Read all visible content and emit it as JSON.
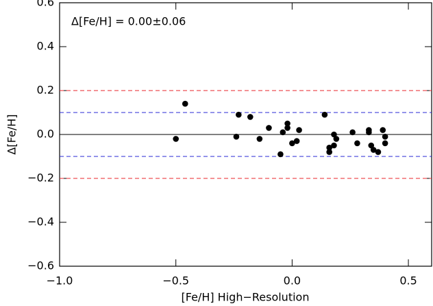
{
  "chart_data": {
    "type": "scatter",
    "annotation": "Δ[Fe/H]  =  0.00±0.06",
    "x_label": "[Fe/H] High−Resolution",
    "y_label": "Δ[Fe/H]",
    "x": [
      -0.5,
      -0.46,
      -0.24,
      -0.23,
      -0.18,
      -0.14,
      -0.1,
      -0.05,
      -0.04,
      -0.02,
      -0.02,
      0.0,
      0.02,
      0.03,
      0.14,
      0.16,
      0.16,
      0.18,
      0.18,
      0.19,
      0.26,
      0.28,
      0.33,
      0.33,
      0.34,
      0.35,
      0.37,
      0.39,
      0.4,
      0.4
    ],
    "values": [
      -0.02,
      0.14,
      -0.01,
      0.09,
      0.08,
      -0.02,
      0.03,
      -0.09,
      0.01,
      0.05,
      0.03,
      -0.04,
      -0.03,
      0.02,
      0.09,
      -0.06,
      -0.08,
      0.0,
      -0.05,
      -0.02,
      0.01,
      -0.04,
      0.02,
      0.01,
      -0.05,
      -0.07,
      -0.08,
      0.02,
      -0.01,
      -0.04
    ],
    "color": "#000000",
    "xlim": [
      -1.0,
      0.6
    ],
    "ylim": [
      -0.6,
      0.6
    ],
    "xticks": [
      {
        "value": -1.0,
        "label": "−1.0"
      },
      {
        "value": -0.5,
        "label": "−0.5"
      },
      {
        "value": 0.0,
        "label": "0.0"
      },
      0.5
    ],
    "yticks": [
      {
        "value": -0.6,
        "label": "−0.6"
      },
      {
        "value": -0.4,
        "label": "−0.4"
      },
      {
        "value": -0.2,
        "label": "−0.2"
      },
      {
        "value": 0.0,
        "label": "0.0"
      },
      0.2,
      0.4,
      0.6
    ],
    "hlines": [
      {
        "value": 0.2,
        "color": "#e8262b",
        "dashed": true
      },
      {
        "value": 0.1,
        "color": "#2a2ad6",
        "dashed": true
      },
      {
        "value": 0.0,
        "color": "#000000",
        "dashed": false
      },
      {
        "value": -0.1,
        "color": "#2a2ad6",
        "dashed": true
      },
      {
        "value": -0.2,
        "color": "#e8262b",
        "dashed": true
      }
    ]
  }
}
